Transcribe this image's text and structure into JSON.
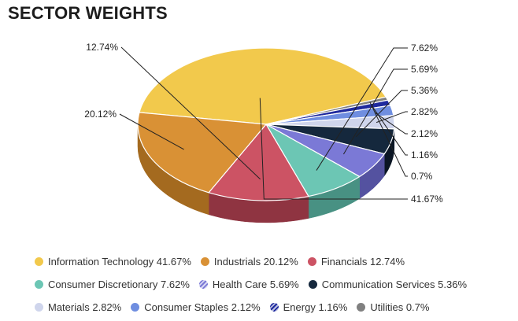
{
  "chart_data": {
    "type": "pie",
    "title": "SECTOR WEIGHTS",
    "slices": [
      {
        "name": "Information Technology",
        "value": 41.67,
        "label": "41.67%",
        "color": "#f2c94c",
        "side": "#a8892c"
      },
      {
        "name": "Utilities",
        "value": 0.7,
        "label": "0.7%",
        "color": "#808080",
        "side": "#555555"
      },
      {
        "name": "Energy",
        "value": 1.16,
        "label": "1.16%",
        "color": "#1f2a9e",
        "side": "#141c66"
      },
      {
        "name": "Consumer Staples",
        "value": 2.12,
        "label": "2.12%",
        "color": "#6f8ee0",
        "side": "#4a63a6"
      },
      {
        "name": "Materials",
        "value": 2.82,
        "label": "2.82%",
        "color": "#cfd5ec",
        "side": "#9aa1bf"
      },
      {
        "name": "Communication Services",
        "value": 5.36,
        "label": "5.36%",
        "color": "#15283d",
        "side": "#0b1624"
      },
      {
        "name": "Health Care",
        "value": 5.69,
        "label": "5.69%",
        "color": "#7b79d6",
        "side": "#5452a0"
      },
      {
        "name": "Consumer Discretionary",
        "value": 7.62,
        "label": "7.62%",
        "color": "#6cc6b4",
        "side": "#489183"
      },
      {
        "name": "Financials",
        "value": 12.74,
        "label": "12.74%",
        "color": "#cc5364",
        "side": "#8f3441"
      },
      {
        "name": "Industrials",
        "value": 20.12,
        "label": "20.12%",
        "color": "#d99135",
        "side": "#a46a1f"
      }
    ]
  },
  "legend": {
    "rows": [
      [
        {
          "text": "Information Technology 41.67%",
          "color": "#f2c94c",
          "hatched": false,
          "name": "legend-information-technology"
        },
        {
          "text": "Industrials 20.12%",
          "color": "#d99135",
          "hatched": false,
          "name": "legend-industrials"
        },
        {
          "text": "Financials 12.74%",
          "color": "#cc5364",
          "hatched": false,
          "name": "legend-financials"
        }
      ],
      [
        {
          "text": "Consumer Discretionary 7.62%",
          "color": "#6cc6b4",
          "hatched": false,
          "name": "legend-consumer-discretionary"
        },
        {
          "text": "Health Care 5.69%",
          "color": "#7b79d6",
          "hatched": true,
          "name": "legend-health-care"
        },
        {
          "text": "Communication Services 5.36%",
          "color": "#15283d",
          "hatched": false,
          "name": "legend-communication-services"
        }
      ],
      [
        {
          "text": "Materials 2.82%",
          "color": "#cfd5ec",
          "hatched": false,
          "name": "legend-materials"
        },
        {
          "text": "Consumer Staples 2.12%",
          "color": "#6f8ee0",
          "hatched": false,
          "name": "legend-consumer-staples"
        },
        {
          "text": "Energy 1.16%",
          "color": "#1f2a9e",
          "hatched": true,
          "name": "legend-energy"
        },
        {
          "text": "Utilities 0.7%",
          "color": "#808080",
          "hatched": false,
          "name": "legend-utilities"
        }
      ]
    ]
  }
}
